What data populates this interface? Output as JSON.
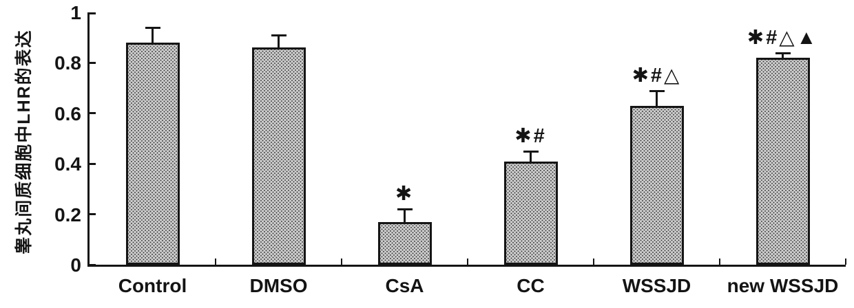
{
  "figure": {
    "background": "#ffffff"
  },
  "chart_data": {
    "type": "bar",
    "title": "",
    "xlabel": "",
    "ylabel": "睾丸间质细胞中LHR的表达",
    "ylim": [
      0,
      1
    ],
    "yticks": [
      0,
      0.2,
      0.4,
      0.6,
      0.8,
      1
    ],
    "ytick_labels": [
      "0",
      "0.2",
      "0.4",
      "0.6",
      "0.8",
      "1"
    ],
    "categories": [
      "Control",
      "DMSO",
      "CsA",
      "CC",
      "WSSJD",
      "new WSSJD"
    ],
    "series": [
      {
        "name": "LHR expression",
        "values": [
          0.88,
          0.86,
          0.17,
          0.41,
          0.63,
          0.82
        ],
        "errors": [
          0.06,
          0.05,
          0.05,
          0.04,
          0.06,
          0.02
        ]
      }
    ],
    "annotations": [
      "",
      "",
      "✱",
      "✱#",
      "✱#△",
      "✱#△▲"
    ],
    "legend": null,
    "grid": false,
    "bar_style": "gray halftone dot pattern, black outline, T-shaped error bars",
    "colors": {
      "bar_fill": "#cccccc",
      "bar_dot": "#3f3f3f",
      "outline": "#151515",
      "text": "#141414",
      "background": "#ffffff"
    }
  }
}
